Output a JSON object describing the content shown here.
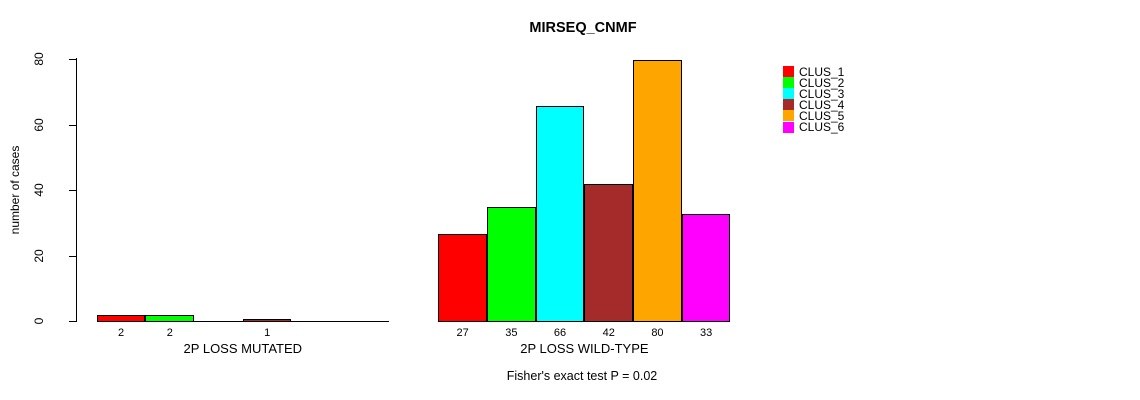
{
  "chart_data": {
    "type": "bar",
    "title": "MIRSEQ_CNMF",
    "ylabel": "number of cases",
    "ylim": [
      0,
      80
    ],
    "yticks": [
      0,
      20,
      40,
      60,
      80
    ],
    "grid": false,
    "legend_position": "right",
    "legend": [
      {
        "label": "CLUS_1",
        "color": "#ff0000"
      },
      {
        "label": "CLUS_2",
        "color": "#00ff00"
      },
      {
        "label": "CLUS_3",
        "color": "#00ffff"
      },
      {
        "label": "CLUS_4",
        "color": "#a52a2a"
      },
      {
        "label": "CLUS_5",
        "color": "#ffa500"
      },
      {
        "label": "CLUS_6",
        "color": "#ff00ff"
      }
    ],
    "groups": [
      {
        "label": "2P LOSS MUTATED",
        "values": [
          2,
          2,
          0,
          1,
          0,
          0
        ],
        "bar_labels": [
          "2",
          "2",
          "",
          "1",
          "",
          ""
        ]
      },
      {
        "label": "2P LOSS WILD-TYPE",
        "values": [
          27,
          35,
          66,
          42,
          80,
          33
        ],
        "bar_labels": [
          "27",
          "35",
          "66",
          "42",
          "80",
          "33"
        ]
      }
    ],
    "annotation": "Fisher's exact test P = 0.02"
  }
}
